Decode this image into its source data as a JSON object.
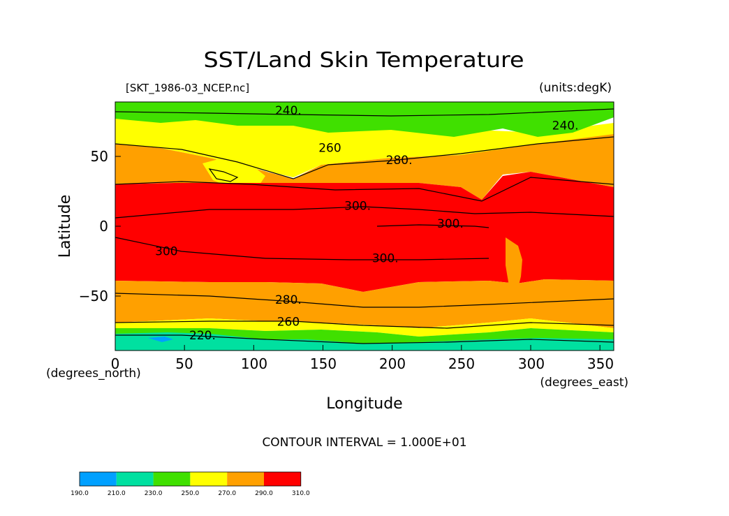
{
  "title": "SST/Land Skin Temperature",
  "source_file": "[SKT_1986-03_NCEP.nc]",
  "units": "(units:degK)",
  "x_axis": {
    "label": "Longitude",
    "units": "(degrees_east)",
    "ticks": [
      "0",
      "50",
      "100",
      "150",
      "200",
      "250",
      "300",
      "350"
    ],
    "range": [
      0,
      360
    ]
  },
  "y_axis": {
    "label": "Latitude",
    "units": "(degrees_north)",
    "ticks": [
      "50",
      "0",
      "−50"
    ],
    "range": [
      -90,
      90
    ]
  },
  "contour_interval_text": "CONTOUR INTERVAL = 1.000E+01",
  "contour_labels": [
    {
      "text": "240.",
      "lon": 125,
      "lat": 84
    },
    {
      "text": "240.",
      "lon": 325,
      "lat": 73
    },
    {
      "text": "260",
      "lon": 155,
      "lat": 57
    },
    {
      "text": "280.",
      "lon": 205,
      "lat": 48
    },
    {
      "text": "300.",
      "lon": 175,
      "lat": 15
    },
    {
      "text": "300.",
      "lon": 242,
      "lat": 2
    },
    {
      "text": "300.",
      "lon": 195,
      "lat": -23
    },
    {
      "text": "300",
      "lon": 37,
      "lat": -18
    },
    {
      "text": "280.",
      "lon": 125,
      "lat": -53
    },
    {
      "text": "260",
      "lon": 125,
      "lat": -69
    },
    {
      "text": "220.",
      "lon": 63,
      "lat": -79
    }
  ],
  "colorbar": {
    "levels": [
      "190.0",
      "210.0",
      "230.0",
      "250.0",
      "270.0",
      "290.0",
      "310.0"
    ],
    "colors": [
      "#00a0ff",
      "#00e0a0",
      "#40e000",
      "#ffff00",
      "#ffa000",
      "#ff0000"
    ]
  },
  "palette": {
    "blue": "#00a0ff",
    "teal": "#00e0a0",
    "green": "#40e000",
    "yellow": "#ffff00",
    "orange": "#ffa000",
    "red": "#ff0000"
  }
}
